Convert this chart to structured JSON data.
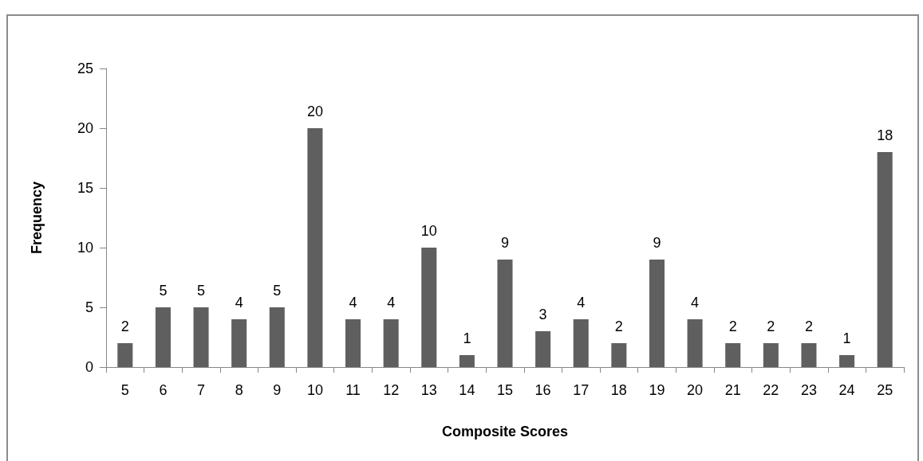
{
  "chart_data": {
    "type": "bar",
    "categories": [
      "5",
      "6",
      "7",
      "8",
      "9",
      "10",
      "11",
      "12",
      "13",
      "14",
      "15",
      "16",
      "17",
      "18",
      "19",
      "20",
      "21",
      "22",
      "23",
      "24",
      "25"
    ],
    "values": [
      2,
      5,
      5,
      4,
      5,
      20,
      4,
      4,
      10,
      1,
      9,
      3,
      4,
      2,
      9,
      4,
      2,
      2,
      2,
      1,
      18
    ],
    "color": "#5f5f5f",
    "xlabel": "Composite Scores",
    "ylabel": "Frequency",
    "ylim": [
      0,
      25
    ],
    "yticks": [
      0,
      5,
      10,
      15,
      20,
      25
    ],
    "data_labels": true
  }
}
